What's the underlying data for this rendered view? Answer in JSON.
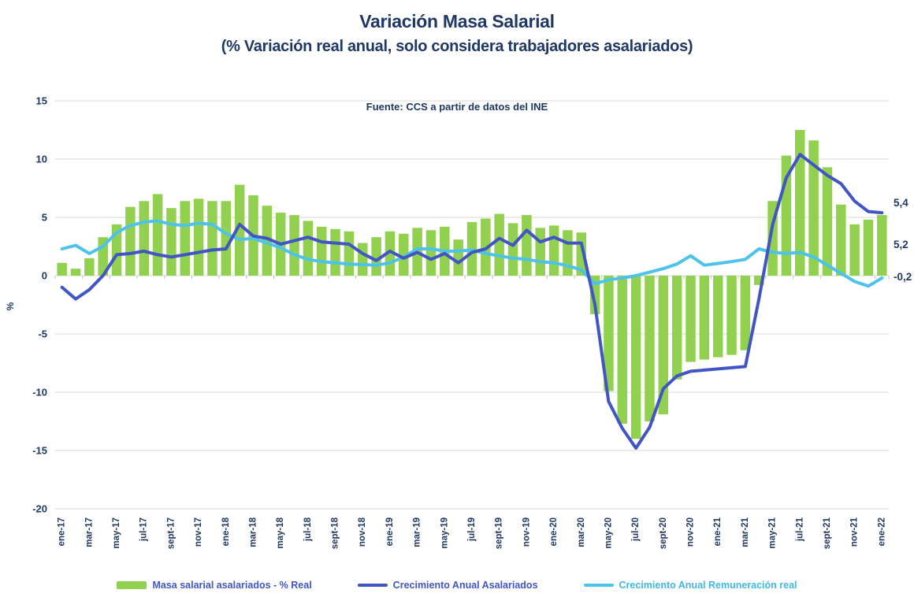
{
  "page": {
    "title": "Variación Masa Salarial",
    "subtitle": "(% Variación real anual, solo considera trabajadores asalariados)",
    "source_note": "Fuente: CCS a partir de datos del INE",
    "y_axis_label": "%"
  },
  "colors": {
    "bars": "#92d050",
    "line_asalariados": "#4155c4",
    "line_remuneracion": "#4ec3ea",
    "text_navy": "#1f3864",
    "grid": "#d9d9d9",
    "tick": "#bfbfbf",
    "legend_text_blue": "#4155c4",
    "legend_text_cyan": "#41b8e3"
  },
  "chart_data": {
    "type": "bar",
    "subtype": "bar+line combo, monthly time series",
    "title": "Variación Masa Salarial",
    "subtitle": "(% Variación real anual, solo considera trabajadores asalariados)",
    "xlabel": "",
    "ylabel": "%",
    "ylim": [
      -20,
      15
    ],
    "y_ticks": [
      15,
      10,
      5,
      0,
      -5,
      -10,
      -15,
      -20
    ],
    "grid": "horizontal",
    "legend_position": "bottom",
    "categories": [
      "ene-17",
      "feb-17",
      "mar-17",
      "abr-17",
      "may-17",
      "jun-17",
      "jul-17",
      "ago-17",
      "sept-17",
      "oct-17",
      "nov-17",
      "dic-17",
      "ene-18",
      "feb-18",
      "mar-18",
      "abr-18",
      "may-18",
      "jun-18",
      "jul-18",
      "ago-18",
      "sept-18",
      "oct-18",
      "nov-18",
      "dic-18",
      "ene-19",
      "feb-19",
      "mar-19",
      "abr-19",
      "may-19",
      "jun-19",
      "jul-19",
      "ago-19",
      "sept-19",
      "oct-19",
      "nov-19",
      "dic-19",
      "ene-20",
      "feb-20",
      "mar-20",
      "abr-20",
      "may-20",
      "jun-20",
      "jul-20",
      "ago-20",
      "sept-20",
      "oct-20",
      "nov-20",
      "dic-20",
      "ene-21",
      "feb-21",
      "mar-21",
      "abr-21",
      "may-21",
      "jun-21",
      "jul-21",
      "ago-21",
      "sept-21",
      "oct-21",
      "nov-21",
      "dic-21",
      "ene-22"
    ],
    "x_tick_labels": [
      "ene-17",
      "mar-17",
      "may-17",
      "jul-17",
      "sept-17",
      "nov-17",
      "ene-18",
      "mar-18",
      "may-18",
      "jul-18",
      "sept-18",
      "nov-18",
      "ene-19",
      "mar-19",
      "may-19",
      "jul-19",
      "sept-19",
      "nov-19",
      "ene-20",
      "mar-20",
      "may-20",
      "jul-20",
      "sept-20",
      "nov-20",
      "ene-21",
      "mar-21",
      "may-21",
      "jul-21",
      "sept-21",
      "nov-21",
      "ene-22"
    ],
    "series": [
      {
        "name": "Masa salarial asalariados - % Real",
        "type": "bar",
        "color": "#92d050",
        "values": [
          1.1,
          0.6,
          1.5,
          3.3,
          4.4,
          5.9,
          6.4,
          7.0,
          5.8,
          6.4,
          6.6,
          6.4,
          6.4,
          7.8,
          6.9,
          6.0,
          5.4,
          5.2,
          4.7,
          4.2,
          4.0,
          3.8,
          2.8,
          3.3,
          3.8,
          3.6,
          4.1,
          3.9,
          4.2,
          3.1,
          4.6,
          4.9,
          5.3,
          4.5,
          5.2,
          4.1,
          4.3,
          3.9,
          3.7,
          -3.3,
          -9.9,
          -12.7,
          -14.0,
          -12.5,
          -11.9,
          -8.9,
          -7.4,
          -7.2,
          -7.0,
          -6.8,
          -6.4,
          -0.8,
          6.4,
          10.3,
          12.5,
          11.6,
          9.3,
          6.1,
          4.4,
          4.8,
          5.2
        ]
      },
      {
        "name": "Crecimiento Anual Asalariados",
        "type": "line",
        "color": "#4155c4",
        "values": [
          -1.0,
          -2.0,
          -1.2,
          0.0,
          1.8,
          1.9,
          2.1,
          1.8,
          1.6,
          1.8,
          2.0,
          2.2,
          2.3,
          4.4,
          3.4,
          3.2,
          2.7,
          3.0,
          3.3,
          2.9,
          2.8,
          2.7,
          1.9,
          1.3,
          2.1,
          1.5,
          2.0,
          1.4,
          1.9,
          1.1,
          2.0,
          2.3,
          3.2,
          2.6,
          3.9,
          2.9,
          3.3,
          2.8,
          2.8,
          -2.5,
          -10.8,
          -13.1,
          -14.8,
          -13.0,
          -9.7,
          -8.6,
          -8.2,
          -8.1,
          -8.0,
          -7.9,
          -7.8,
          -2.0,
          4.4,
          8.4,
          10.4,
          9.5,
          8.6,
          7.9,
          6.4,
          5.5,
          5.4
        ]
      },
      {
        "name": "Crecimiento Anual Remuneración real",
        "type": "line",
        "color": "#4ec3ea",
        "values": [
          2.3,
          2.6,
          1.9,
          2.5,
          3.7,
          4.3,
          4.6,
          4.7,
          4.4,
          4.3,
          4.5,
          4.4,
          3.6,
          3.1,
          3.2,
          2.8,
          2.4,
          1.8,
          1.4,
          1.2,
          1.1,
          1.0,
          0.95,
          0.9,
          1.1,
          1.6,
          2.3,
          2.3,
          2.1,
          2.1,
          2.2,
          1.9,
          1.7,
          1.5,
          1.4,
          1.2,
          1.1,
          0.85,
          0.5,
          -0.7,
          -0.35,
          -0.2,
          0.0,
          0.3,
          0.6,
          1.0,
          1.7,
          0.9,
          1.05,
          1.2,
          1.4,
          2.3,
          2.0,
          1.9,
          2.0,
          1.6,
          0.9,
          0.2,
          -0.5,
          -0.9,
          -0.2
        ]
      }
    ],
    "end_labels": [
      {
        "text": "5,4",
        "series": "Crecimiento Anual Asalariados",
        "value": 5.4
      },
      {
        "text": "5,2",
        "series": "Masa salarial asalariados - % Real",
        "value": 5.2
      },
      {
        "text": "-0,2",
        "series": "Crecimiento Anual Remuneración real",
        "value": -0.2
      }
    ]
  }
}
